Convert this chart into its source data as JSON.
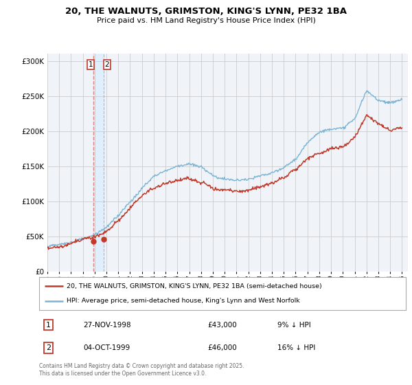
{
  "title": "20, THE WALNUTS, GRIMSTON, KING'S LYNN, PE32 1BA",
  "subtitle": "Price paid vs. HM Land Registry's House Price Index (HPI)",
  "legend_line1": "20, THE WALNUTS, GRIMSTON, KING'S LYNN, PE32 1BA (semi-detached house)",
  "legend_line2": "HPI: Average price, semi-detached house, King's Lynn and West Norfolk",
  "transaction1_date": "27-NOV-1998",
  "transaction1_price": "£43,000",
  "transaction1_note": "9% ↓ HPI",
  "transaction2_date": "04-OCT-1999",
  "transaction2_price": "£46,000",
  "transaction2_note": "16% ↓ HPI",
  "hpi_color": "#7ab3d4",
  "price_color": "#c0392b",
  "vline_color": "#e08080",
  "vband_color": "#ddeeff",
  "background_color": "#f0f4f8",
  "grid_color": "#cccccc",
  "ylim": [
    0,
    310000
  ],
  "yticks": [
    0,
    50000,
    100000,
    150000,
    200000,
    250000,
    300000
  ],
  "footnote": "Contains HM Land Registry data © Crown copyright and database right 2025.\nThis data is licensed under the Open Government Licence v3.0.",
  "transaction1_x": 1998.91,
  "transaction1_y": 43000,
  "transaction2_x": 1999.75,
  "transaction2_y": 46000,
  "xmin": 1995,
  "xmax": 2025.5
}
